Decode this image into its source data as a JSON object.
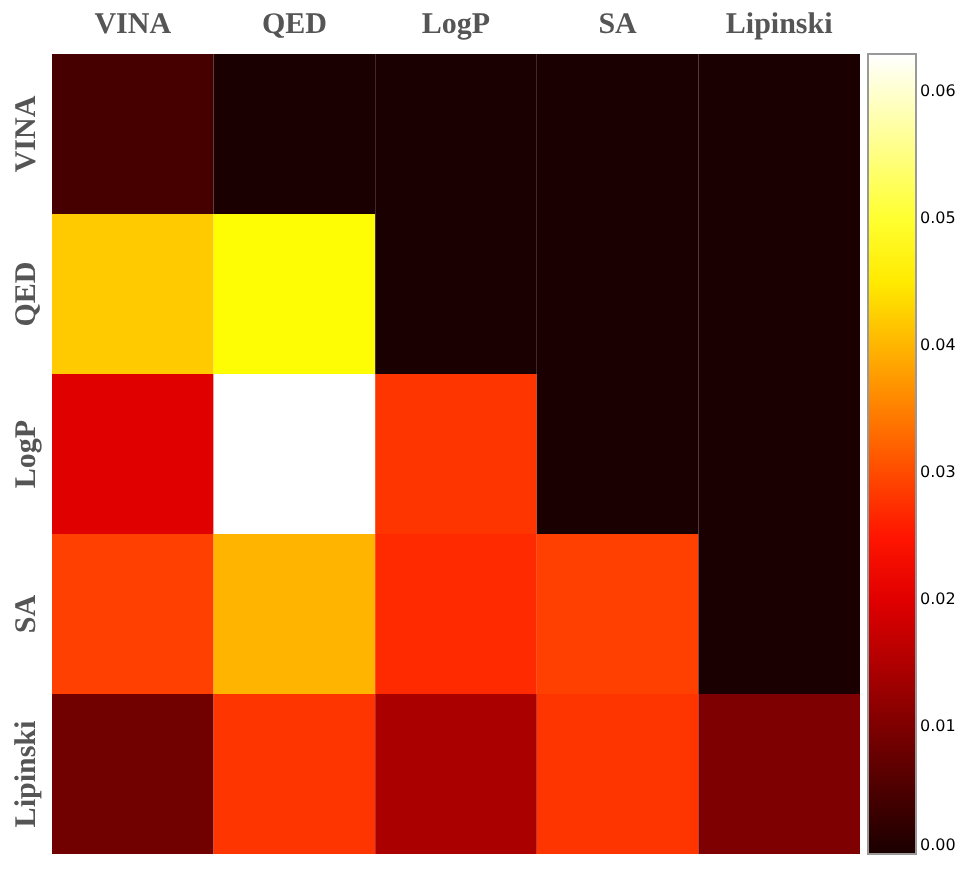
{
  "chart_data": {
    "type": "heatmap",
    "categories": [
      "VINA",
      "QED",
      "LogP",
      "SA",
      "Lipinski"
    ],
    "y_categories": [
      "VINA",
      "QED",
      "LogP",
      "SA",
      "Lipinski"
    ],
    "cells": [
      [
        0.0044,
        0,
        0,
        0,
        0
      ],
      [
        0.042,
        0.047,
        0,
        0,
        0
      ],
      [
        0.02,
        0.063,
        0.028,
        0,
        0
      ],
      [
        0.029,
        0.04,
        0.027,
        0.029,
        0
      ],
      [
        0.0087,
        0.028,
        0.0145,
        0.028,
        0.01
      ]
    ],
    "clim": [
      0,
      0.063
    ],
    "cticks": [
      {
        "value": 0,
        "label": "0.00"
      },
      {
        "value": 0.01,
        "label": "0.01"
      },
      {
        "value": 0.02,
        "label": "0.02"
      },
      {
        "value": 0.03,
        "label": "0.03"
      },
      {
        "value": 0.04,
        "label": "0.04"
      },
      {
        "value": 0.05,
        "label": "0.05"
      },
      {
        "value": 0.06,
        "label": "0.06"
      }
    ]
  }
}
